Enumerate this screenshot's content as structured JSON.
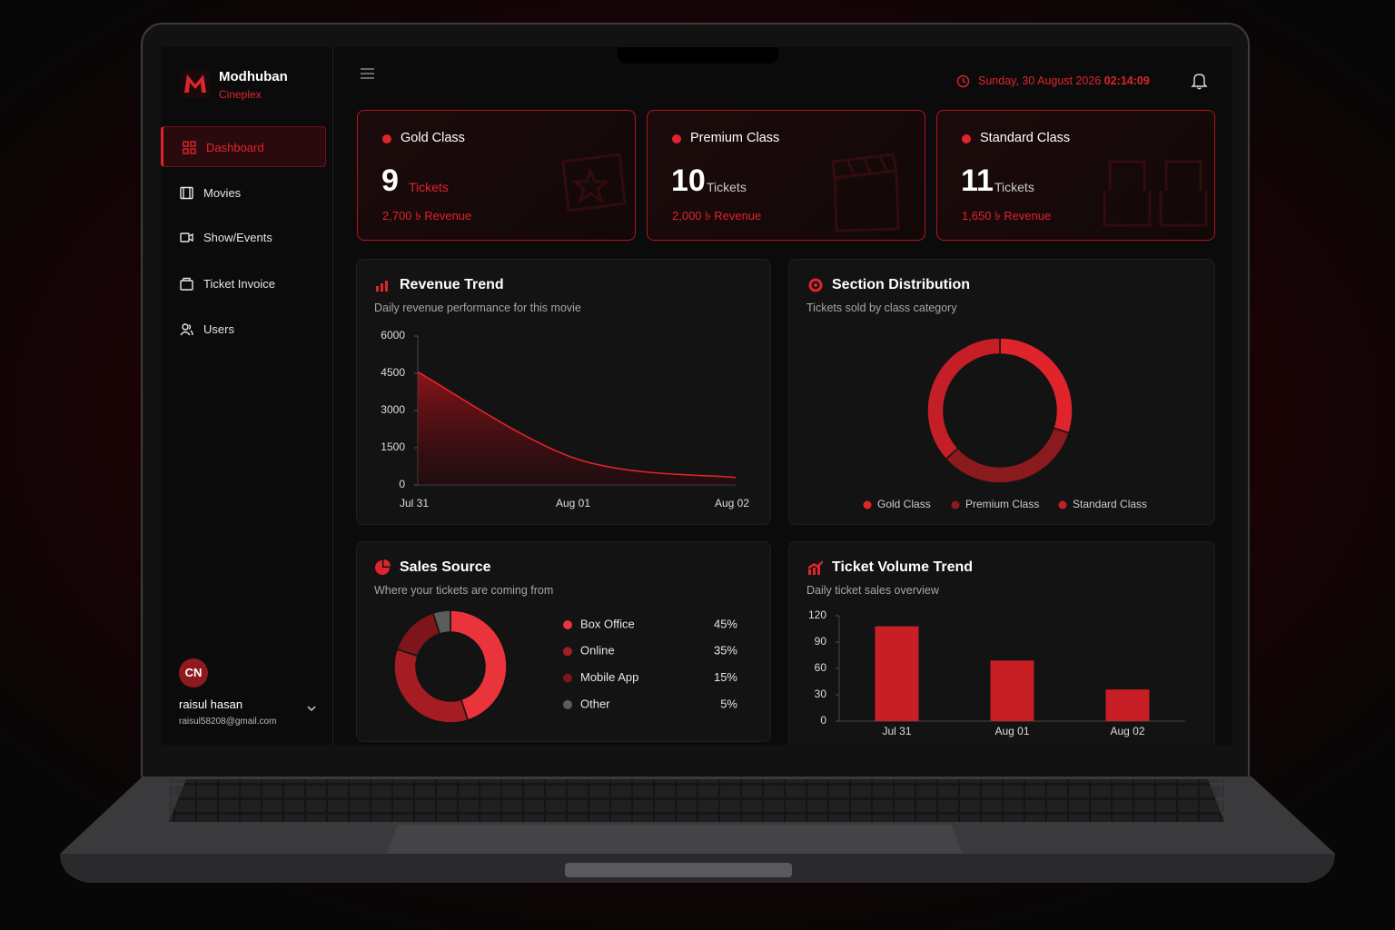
{
  "brand": {
    "name": "Modhuban",
    "subtitle": "Cineplex"
  },
  "nav": {
    "items": [
      "Dashboard",
      "Movies",
      "Show/Events",
      "Ticket Invoice",
      "Users"
    ],
    "active": 0
  },
  "user": {
    "initials": "CN",
    "name": "raisul hasan",
    "email": "raisul58208@gmail.com"
  },
  "header": {
    "date": "Sunday, 30 August 2026",
    "time": "02:14:09"
  },
  "cards": [
    {
      "name": "Gold Class",
      "tickets": 9,
      "unit": "Tickets",
      "revenue": "2,700 ৳ Revenue"
    },
    {
      "name": "Premium Class",
      "tickets": 10,
      "unit": "Tickets",
      "revenue": "2,000 ৳ Revenue"
    },
    {
      "name": "Standard Class",
      "tickets": 11,
      "unit": "Tickets",
      "revenue": "1,650 ৳ Revenue"
    }
  ],
  "chart_data": [
    {
      "type": "area",
      "title": "Revenue Trend",
      "subtitle": "Daily revenue performance for this movie",
      "categories": [
        "Jul 31",
        "Aug 01",
        "Aug 02"
      ],
      "values": [
        4550,
        1050,
        300
      ],
      "color": "#e0242c",
      "ylim": [
        0,
        6000
      ],
      "yticks": [
        0,
        1500,
        3000,
        4500,
        6000
      ]
    },
    {
      "type": "donut",
      "title": "Section Distribution",
      "subtitle": "Tickets sold by class category",
      "categories": [
        "Gold Class",
        "Premium Class",
        "Standard Class"
      ],
      "values": [
        9,
        10,
        11
      ],
      "colors": [
        "#e0242c",
        "#8a1a1e",
        "#c41f26"
      ],
      "legend": "bottom"
    },
    {
      "type": "donut",
      "title": "Sales Source",
      "subtitle": "Where your tickets are coming from",
      "categories": [
        "Box Office",
        "Online",
        "Mobile App",
        "Other"
      ],
      "values": [
        45,
        35,
        15,
        5
      ],
      "value_labels": [
        "45%",
        "35%",
        "15%",
        "5%"
      ],
      "colors": [
        "#e8343a",
        "#a51d23",
        "#7d151a",
        "#5c5c5c"
      ],
      "legend": "right"
    },
    {
      "type": "bar",
      "title": "Ticket Volume Trend",
      "subtitle": "Daily ticket sales overview",
      "categories": [
        "Jul 31",
        "Aug 01",
        "Aug 02"
      ],
      "values": [
        108,
        69,
        36
      ],
      "color": "#c81e25",
      "ylim": [
        0,
        120
      ],
      "yticks": [
        0,
        30,
        60,
        90,
        120
      ]
    }
  ]
}
